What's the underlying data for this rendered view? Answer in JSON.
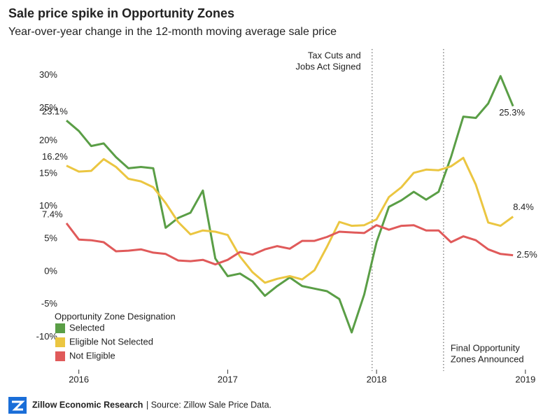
{
  "chart_data": {
    "type": "line",
    "title": "Sale price spike in Opportunity Zones",
    "subtitle": "Year-over-year change in the 12-month moving average sale price",
    "x": [
      2015.917,
      2016,
      2016.083,
      2016.167,
      2016.25,
      2016.333,
      2016.417,
      2016.5,
      2016.583,
      2016.667,
      2016.75,
      2016.833,
      2016.917,
      2017,
      2017.083,
      2017.167,
      2017.25,
      2017.333,
      2017.417,
      2017.5,
      2017.583,
      2017.667,
      2017.75,
      2017.833,
      2017.917,
      2018,
      2018.083,
      2018.167,
      2018.25,
      2018.333,
      2018.417,
      2018.5,
      2018.583,
      2018.667,
      2018.75,
      2018.833,
      2018.917
    ],
    "xlim": [
      2015.87,
      2019.09
    ],
    "xticks": [
      2016,
      2017,
      2018,
      2019
    ],
    "ylim": [
      -15.2,
      31.9
    ],
    "yticks": [
      {
        "value": -10,
        "label": "-10%"
      },
      {
        "value": -5,
        "label": "-5%"
      },
      {
        "value": 0,
        "label": "0%"
      },
      {
        "value": 5,
        "label": "5%"
      },
      {
        "value": 10,
        "label": "10%"
      },
      {
        "value": 15,
        "label": "15%"
      },
      {
        "value": 20,
        "label": "20%"
      },
      {
        "value": 25,
        "label": "25%"
      },
      {
        "value": 30,
        "label": "30%"
      }
    ],
    "legend_title": "Opportunity Zone Designation",
    "legend": "lower left",
    "series": [
      {
        "name": "Selected",
        "color": "#5a9e46",
        "values": [
          23.1,
          21.5,
          19.2,
          19.6,
          17.5,
          15.8,
          16.0,
          15.8,
          6.7,
          8.2,
          9.0,
          12.4,
          2.0,
          -0.7,
          -0.3,
          -1.5,
          -3.7,
          -2.2,
          -0.9,
          -2.2,
          -2.6,
          -3.0,
          -4.2,
          -9.3,
          -3.5,
          4.5,
          9.9,
          10.9,
          12.2,
          11.0,
          12.2,
          17.5,
          23.7,
          23.5,
          25.7,
          29.9,
          25.3
        ],
        "value_labels": [
          "23.1%",
          null,
          null,
          null,
          null,
          null,
          null,
          null,
          null,
          null,
          null,
          null,
          null,
          null,
          null,
          null,
          null,
          null,
          null,
          null,
          null,
          null,
          null,
          null,
          null,
          null,
          null,
          null,
          null,
          null,
          null,
          null,
          null,
          null,
          null,
          null,
          "25.3%"
        ]
      },
      {
        "name": "Eligible Not Selected",
        "color": "#ebc641",
        "values": [
          16.2,
          15.3,
          15.4,
          17.2,
          16.0,
          14.2,
          13.8,
          12.9,
          10.5,
          7.6,
          5.7,
          6.3,
          6.1,
          5.6,
          2.3,
          -0.1,
          -1.7,
          -1.1,
          -0.7,
          -1.2,
          0.2,
          3.8,
          7.6,
          7.0,
          7.1,
          8.0,
          11.4,
          12.9,
          15.1,
          15.6,
          15.5,
          16.1,
          17.4,
          13.3,
          7.5,
          7.0,
          8.4
        ],
        "value_labels": [
          "16.2%",
          null,
          null,
          null,
          null,
          null,
          null,
          null,
          null,
          null,
          null,
          null,
          null,
          null,
          null,
          null,
          null,
          null,
          null,
          null,
          null,
          null,
          null,
          null,
          null,
          null,
          null,
          null,
          null,
          null,
          null,
          null,
          null,
          null,
          null,
          null,
          "8.4%"
        ]
      },
      {
        "name": "Not Eligible",
        "color": "#e05a5a",
        "values": [
          7.4,
          4.9,
          4.8,
          4.5,
          3.1,
          3.2,
          3.4,
          2.9,
          2.7,
          1.7,
          1.6,
          1.8,
          1.1,
          1.8,
          3.0,
          2.6,
          3.4,
          3.9,
          3.5,
          4.7,
          4.7,
          5.3,
          6.1,
          6.0,
          5.9,
          7.1,
          6.4,
          7.0,
          7.1,
          6.3,
          6.3,
          4.5,
          5.4,
          4.8,
          3.4,
          2.7,
          2.5
        ],
        "value_labels": [
          "7.4%",
          null,
          null,
          null,
          null,
          null,
          null,
          null,
          null,
          null,
          null,
          null,
          null,
          null,
          null,
          null,
          null,
          null,
          null,
          null,
          null,
          null,
          null,
          null,
          null,
          null,
          null,
          null,
          null,
          null,
          null,
          null,
          null,
          null,
          null,
          null,
          "2.5%"
        ]
      }
    ],
    "annotations": [
      {
        "x": 2017.97,
        "lines": [
          "Tax Cuts and",
          "Jobs Act Signed"
        ]
      },
      {
        "x": 2018.45,
        "lines": [
          "Final Opportunity",
          "Zones Announced"
        ]
      }
    ],
    "footer": {
      "brand": "Zillow Economic Research",
      "source": "| Source: Zillow Sale Price Data."
    }
  }
}
